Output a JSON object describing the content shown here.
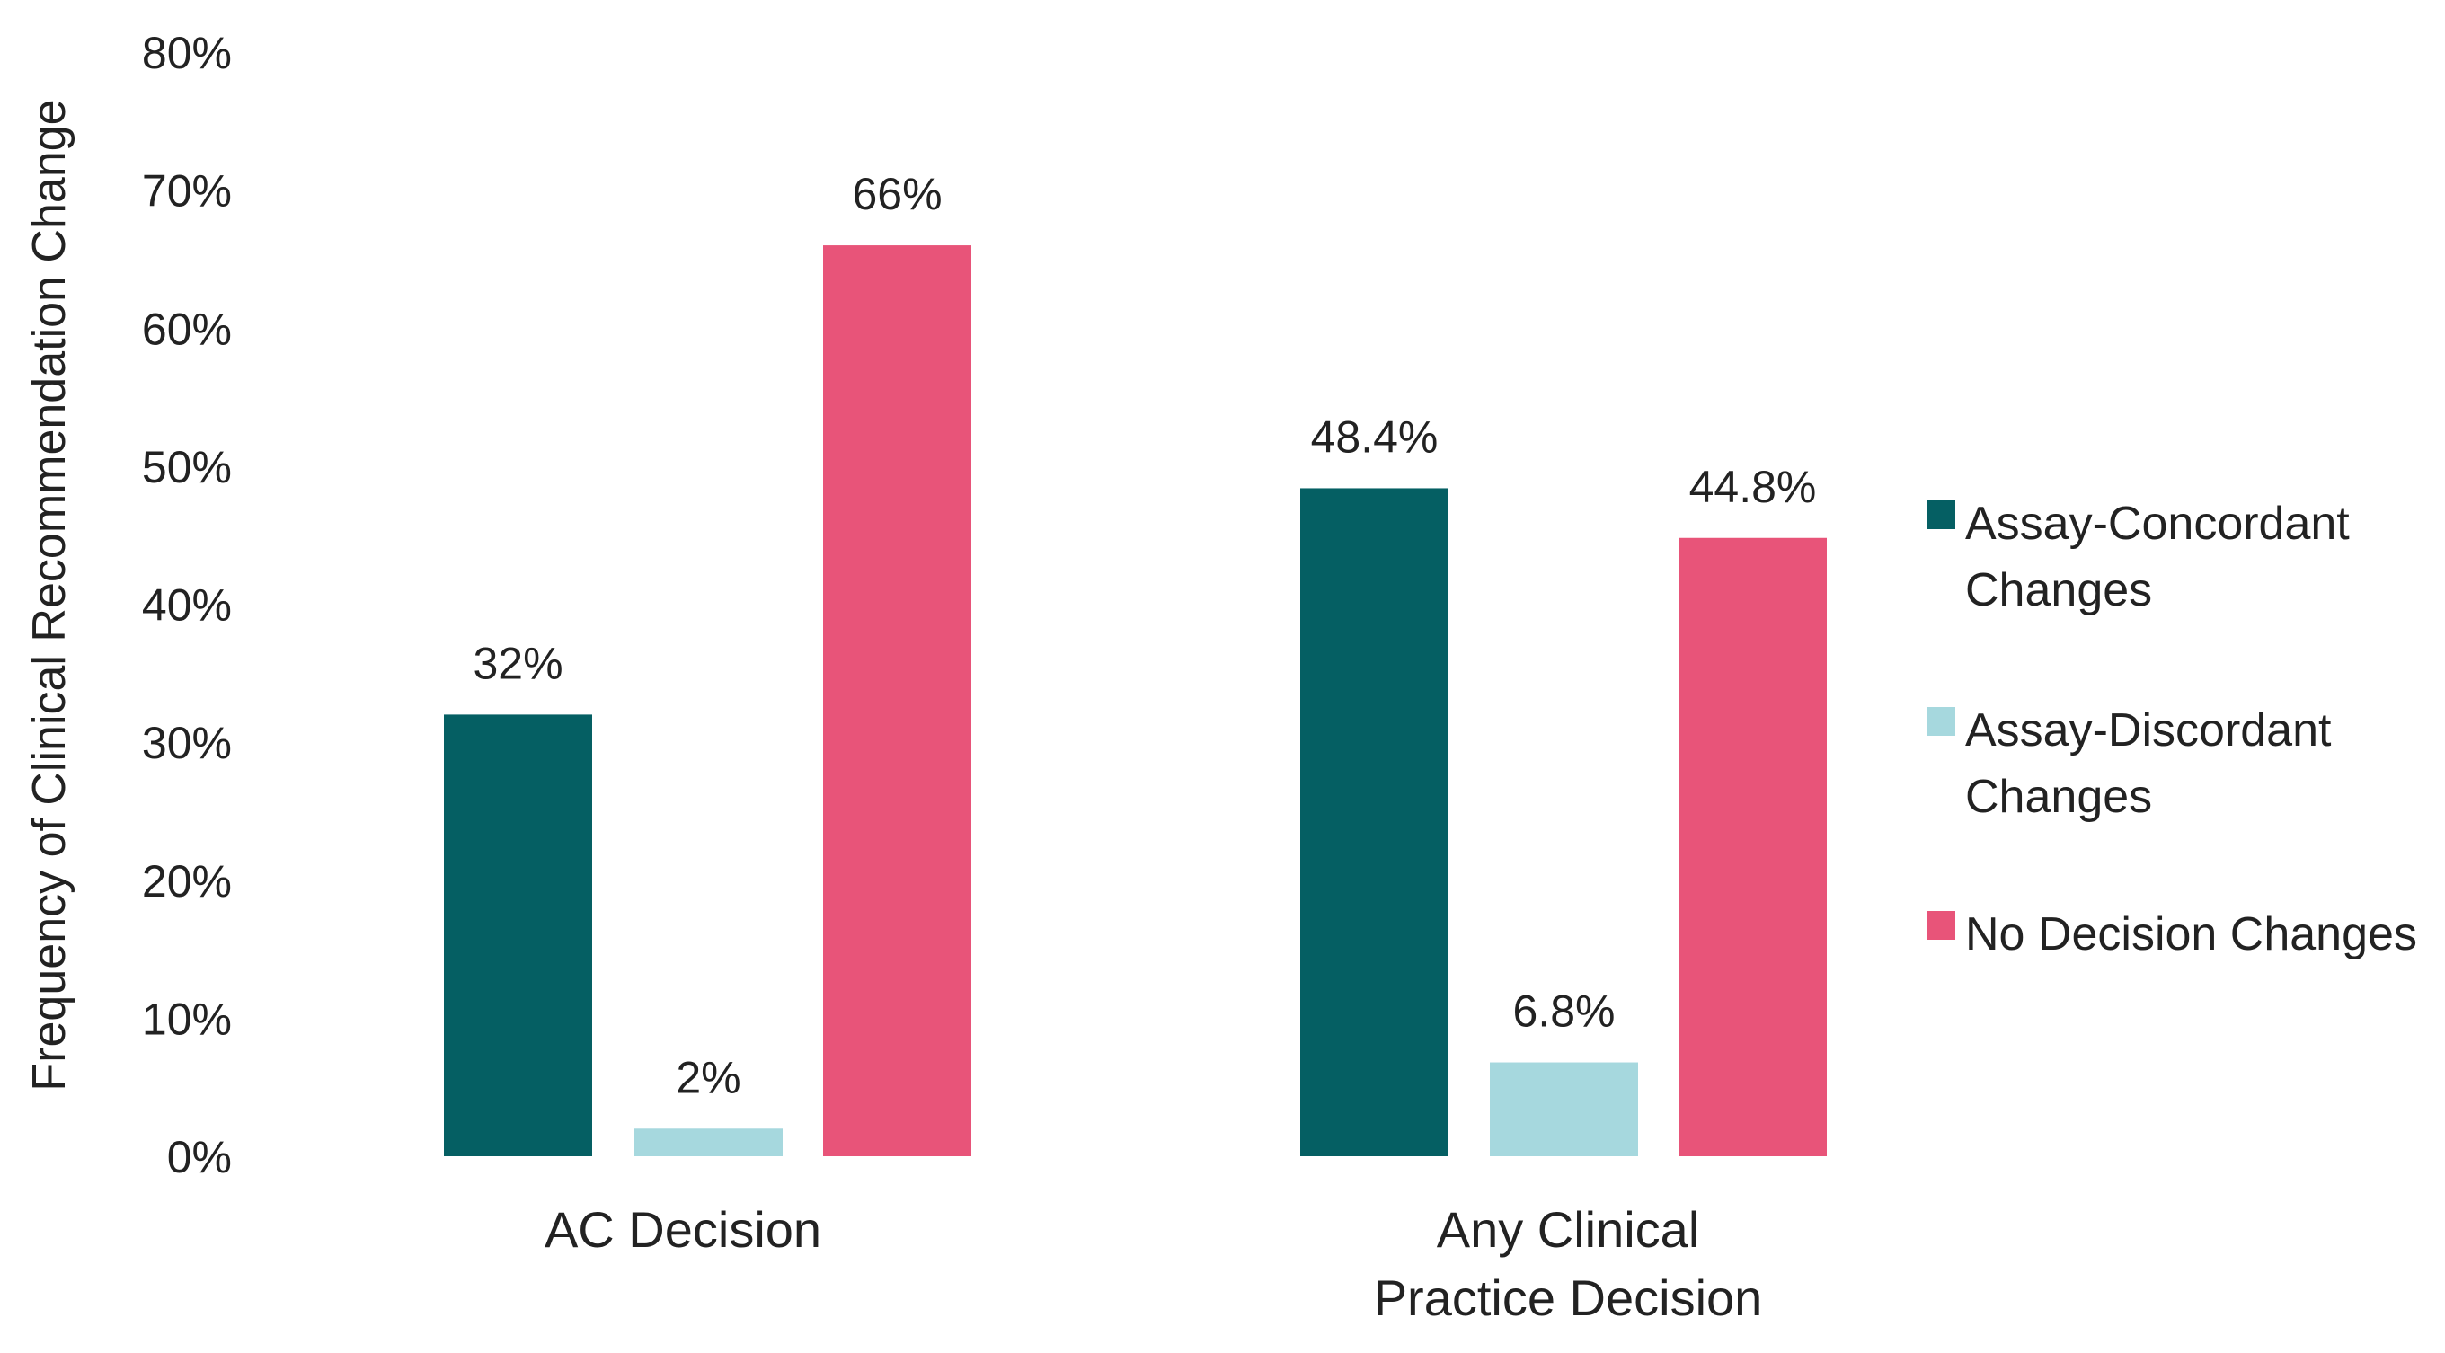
{
  "chart_data": {
    "type": "bar",
    "title": "",
    "xlabel": "",
    "ylabel": "Frequency of Clinical Recommendation Change",
    "ylim": [
      0,
      80
    ],
    "yticks": [
      "0%",
      "10%",
      "20%",
      "30%",
      "40%",
      "50%",
      "60%",
      "70%",
      "80%"
    ],
    "grid": false,
    "legend_position": "right",
    "categories": [
      [
        "AC Decision"
      ],
      [
        "Any Clinical",
        "Practice Decision"
      ]
    ],
    "series": [
      {
        "name": [
          "Assay-Concordant",
          "Changes"
        ],
        "color": "#055f63",
        "values": [
          32,
          48.4
        ],
        "labels": [
          "32%",
          "48.4%"
        ]
      },
      {
        "name": [
          "Assay-Discordant",
          "Changes"
        ],
        "color": "#a6d8de",
        "values": [
          2,
          6.8
        ],
        "labels": [
          "2%",
          "6.8%"
        ]
      },
      {
        "name": [
          "No Decision Changes"
        ],
        "color": "#e85479",
        "values": [
          66,
          44.8
        ],
        "labels": [
          "66%",
          "44.8%"
        ]
      }
    ]
  }
}
